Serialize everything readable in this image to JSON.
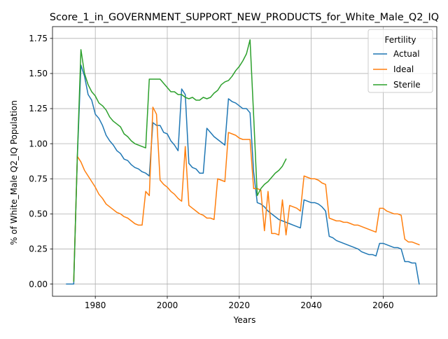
{
  "chart_data": {
    "type": "line",
    "title": "Score_1_in_GOVERNMENT_SUPPORT_NEW_PRODUCTS_for_White_Male_Q2_IQ",
    "xlabel": "Years",
    "ylabel": "% of White_Male Q2_IQ Population",
    "xlim": [
      1968.1,
      2074.9
    ],
    "ylim": [
      -0.087,
      1.834
    ],
    "x_ticks": [
      1980,
      2000,
      2020,
      2040,
      2060
    ],
    "x_tick_labels": [
      "1980",
      "2000",
      "2020",
      "2040",
      "2060"
    ],
    "y_ticks": [
      0.0,
      0.25,
      0.5,
      0.75,
      1.0,
      1.25,
      1.5,
      1.75
    ],
    "y_tick_labels": [
      "0.00",
      "0.25",
      "0.50",
      "0.75",
      "1.00",
      "1.25",
      "1.50",
      "1.75"
    ],
    "grid": true,
    "legend": {
      "title": "Fertility",
      "placement": "top-right"
    },
    "series": [
      {
        "name": "Actual",
        "color": "#1f77b4",
        "points": [
          [
            1972,
            0.0
          ],
          [
            1974,
            0.0
          ],
          [
            1975,
            0.9
          ],
          [
            1976,
            1.56
          ],
          [
            1977,
            1.48
          ],
          [
            1978,
            1.35
          ],
          [
            1979,
            1.31
          ],
          [
            1980,
            1.21
          ],
          [
            1981,
            1.18
          ],
          [
            1982,
            1.13
          ],
          [
            1983,
            1.06
          ],
          [
            1984,
            1.02
          ],
          [
            1985,
            0.99
          ],
          [
            1986,
            0.95
          ],
          [
            1987,
            0.93
          ],
          [
            1988,
            0.89
          ],
          [
            1989,
            0.88
          ],
          [
            1990,
            0.85
          ],
          [
            1991,
            0.83
          ],
          [
            1992,
            0.82
          ],
          [
            1993,
            0.8
          ],
          [
            1994,
            0.79
          ],
          [
            1995,
            0.77
          ],
          [
            1996,
            1.15
          ],
          [
            1997,
            1.13
          ],
          [
            1998,
            1.13
          ],
          [
            1999,
            1.08
          ],
          [
            2000,
            1.07
          ],
          [
            2001,
            1.02
          ],
          [
            2002,
            0.99
          ],
          [
            2003,
            0.95
          ],
          [
            2004,
            1.39
          ],
          [
            2005,
            1.35
          ],
          [
            2006,
            0.86
          ],
          [
            2007,
            0.83
          ],
          [
            2008,
            0.82
          ],
          [
            2009,
            0.79
          ],
          [
            2010,
            0.79
          ],
          [
            2011,
            1.11
          ],
          [
            2012,
            1.08
          ],
          [
            2013,
            1.05
          ],
          [
            2014,
            1.03
          ],
          [
            2015,
            1.01
          ],
          [
            2016,
            0.99
          ],
          [
            2017,
            1.32
          ],
          [
            2018,
            1.3
          ],
          [
            2019,
            1.29
          ],
          [
            2020,
            1.27
          ],
          [
            2021,
            1.25
          ],
          [
            2022,
            1.25
          ],
          [
            2023,
            1.22
          ],
          [
            2024,
            0.8
          ],
          [
            2025,
            0.58
          ],
          [
            2026,
            0.57
          ],
          [
            2027,
            0.55
          ],
          [
            2028,
            0.52
          ],
          [
            2029,
            0.5
          ],
          [
            2030,
            0.48
          ],
          [
            2031,
            0.46
          ],
          [
            2032,
            0.45
          ],
          [
            2033,
            0.44
          ],
          [
            2034,
            0.43
          ],
          [
            2035,
            0.42
          ],
          [
            2036,
            0.41
          ],
          [
            2037,
            0.4
          ],
          [
            2038,
            0.6
          ],
          [
            2039,
            0.59
          ],
          [
            2040,
            0.58
          ],
          [
            2041,
            0.58
          ],
          [
            2042,
            0.57
          ],
          [
            2043,
            0.55
          ],
          [
            2044,
            0.52
          ],
          [
            2045,
            0.34
          ],
          [
            2046,
            0.33
          ],
          [
            2047,
            0.31
          ],
          [
            2048,
            0.3
          ],
          [
            2049,
            0.29
          ],
          [
            2050,
            0.28
          ],
          [
            2051,
            0.27
          ],
          [
            2052,
            0.26
          ],
          [
            2053,
            0.25
          ],
          [
            2054,
            0.23
          ],
          [
            2055,
            0.22
          ],
          [
            2056,
            0.21
          ],
          [
            2057,
            0.21
          ],
          [
            2058,
            0.2
          ],
          [
            2059,
            0.29
          ],
          [
            2060,
            0.29
          ],
          [
            2061,
            0.28
          ],
          [
            2062,
            0.27
          ],
          [
            2063,
            0.26
          ],
          [
            2064,
            0.26
          ],
          [
            2065,
            0.25
          ],
          [
            2066,
            0.16
          ],
          [
            2067,
            0.16
          ],
          [
            2068,
            0.15
          ],
          [
            2069,
            0.15
          ],
          [
            2070,
            0.0
          ]
        ]
      },
      {
        "name": "Ideal",
        "color": "#ff7f0e",
        "points": [
          [
            1974,
            0.02
          ],
          [
            1975,
            0.91
          ],
          [
            1976,
            0.87
          ],
          [
            1977,
            0.81
          ],
          [
            1978,
            0.77
          ],
          [
            1979,
            0.73
          ],
          [
            1980,
            0.69
          ],
          [
            1981,
            0.64
          ],
          [
            1982,
            0.61
          ],
          [
            1983,
            0.57
          ],
          [
            1984,
            0.55
          ],
          [
            1985,
            0.53
          ],
          [
            1986,
            0.51
          ],
          [
            1987,
            0.5
          ],
          [
            1988,
            0.48
          ],
          [
            1989,
            0.47
          ],
          [
            1990,
            0.45
          ],
          [
            1991,
            0.43
          ],
          [
            1992,
            0.42
          ],
          [
            1993,
            0.42
          ],
          [
            1994,
            0.66
          ],
          [
            1995,
            0.63
          ],
          [
            1996,
            1.26
          ],
          [
            1997,
            1.21
          ],
          [
            1998,
            0.74
          ],
          [
            1999,
            0.71
          ],
          [
            2000,
            0.69
          ],
          [
            2001,
            0.66
          ],
          [
            2002,
            0.64
          ],
          [
            2003,
            0.61
          ],
          [
            2004,
            0.59
          ],
          [
            2005,
            0.98
          ],
          [
            2006,
            0.56
          ],
          [
            2007,
            0.54
          ],
          [
            2008,
            0.52
          ],
          [
            2009,
            0.5
          ],
          [
            2010,
            0.49
          ],
          [
            2011,
            0.47
          ],
          [
            2012,
            0.47
          ],
          [
            2013,
            0.46
          ],
          [
            2014,
            0.75
          ],
          [
            2015,
            0.74
          ],
          [
            2016,
            0.73
          ],
          [
            2017,
            1.08
          ],
          [
            2018,
            1.07
          ],
          [
            2019,
            1.06
          ],
          [
            2020,
            1.04
          ],
          [
            2021,
            1.03
          ],
          [
            2022,
            1.03
          ],
          [
            2023,
            1.03
          ],
          [
            2024,
            0.68
          ],
          [
            2025,
            0.68
          ],
          [
            2026,
            0.67
          ],
          [
            2027,
            0.38
          ],
          [
            2028,
            0.66
          ],
          [
            2029,
            0.36
          ],
          [
            2030,
            0.36
          ],
          [
            2031,
            0.35
          ],
          [
            2032,
            0.6
          ],
          [
            2033,
            0.35
          ],
          [
            2034,
            0.56
          ],
          [
            2035,
            0.55
          ],
          [
            2036,
            0.54
          ],
          [
            2037,
            0.52
          ],
          [
            2038,
            0.77
          ],
          [
            2039,
            0.76
          ],
          [
            2040,
            0.75
          ],
          [
            2041,
            0.75
          ],
          [
            2042,
            0.74
          ],
          [
            2043,
            0.72
          ],
          [
            2044,
            0.71
          ],
          [
            2045,
            0.47
          ],
          [
            2046,
            0.46
          ],
          [
            2047,
            0.45
          ],
          [
            2048,
            0.45
          ],
          [
            2049,
            0.44
          ],
          [
            2050,
            0.44
          ],
          [
            2051,
            0.43
          ],
          [
            2052,
            0.42
          ],
          [
            2053,
            0.42
          ],
          [
            2054,
            0.41
          ],
          [
            2055,
            0.4
          ],
          [
            2056,
            0.39
          ],
          [
            2057,
            0.38
          ],
          [
            2058,
            0.37
          ],
          [
            2059,
            0.54
          ],
          [
            2060,
            0.54
          ],
          [
            2061,
            0.52
          ],
          [
            2062,
            0.51
          ],
          [
            2063,
            0.5
          ],
          [
            2064,
            0.5
          ],
          [
            2065,
            0.49
          ],
          [
            2066,
            0.32
          ],
          [
            2067,
            0.3
          ],
          [
            2068,
            0.3
          ],
          [
            2069,
            0.29
          ],
          [
            2070,
            0.28
          ]
        ]
      },
      {
        "name": "Sterile",
        "color": "#2ca02c",
        "points": [
          [
            1974,
            0.02
          ],
          [
            1975,
            0.91
          ],
          [
            1976,
            1.67
          ],
          [
            1977,
            1.5
          ],
          [
            1978,
            1.42
          ],
          [
            1979,
            1.37
          ],
          [
            1980,
            1.34
          ],
          [
            1981,
            1.29
          ],
          [
            1982,
            1.27
          ],
          [
            1983,
            1.24
          ],
          [
            1984,
            1.19
          ],
          [
            1985,
            1.16
          ],
          [
            1986,
            1.14
          ],
          [
            1987,
            1.12
          ],
          [
            1988,
            1.07
          ],
          [
            1989,
            1.05
          ],
          [
            1990,
            1.02
          ],
          [
            1991,
            1.0
          ],
          [
            1992,
            0.99
          ],
          [
            1993,
            0.98
          ],
          [
            1994,
            0.97
          ],
          [
            1995,
            1.46
          ],
          [
            1996,
            1.46
          ],
          [
            1997,
            1.46
          ],
          [
            1998,
            1.46
          ],
          [
            1999,
            1.43
          ],
          [
            2000,
            1.4
          ],
          [
            2001,
            1.37
          ],
          [
            2002,
            1.37
          ],
          [
            2003,
            1.35
          ],
          [
            2004,
            1.35
          ],
          [
            2005,
            1.33
          ],
          [
            2006,
            1.32
          ],
          [
            2007,
            1.33
          ],
          [
            2008,
            1.31
          ],
          [
            2009,
            1.31
          ],
          [
            2010,
            1.33
          ],
          [
            2011,
            1.32
          ],
          [
            2012,
            1.33
          ],
          [
            2013,
            1.36
          ],
          [
            2014,
            1.38
          ],
          [
            2015,
            1.42
          ],
          [
            2016,
            1.44
          ],
          [
            2017,
            1.45
          ],
          [
            2018,
            1.48
          ],
          [
            2019,
            1.52
          ],
          [
            2020,
            1.55
          ],
          [
            2021,
            1.59
          ],
          [
            2022,
            1.64
          ],
          [
            2023,
            1.74
          ],
          [
            2024,
            1.2
          ],
          [
            2025,
            0.63
          ],
          [
            2026,
            0.68
          ],
          [
            2027,
            0.71
          ],
          [
            2028,
            0.73
          ],
          [
            2029,
            0.76
          ],
          [
            2030,
            0.79
          ],
          [
            2031,
            0.81
          ],
          [
            2032,
            0.84
          ],
          [
            2033,
            0.89
          ]
        ]
      }
    ]
  }
}
